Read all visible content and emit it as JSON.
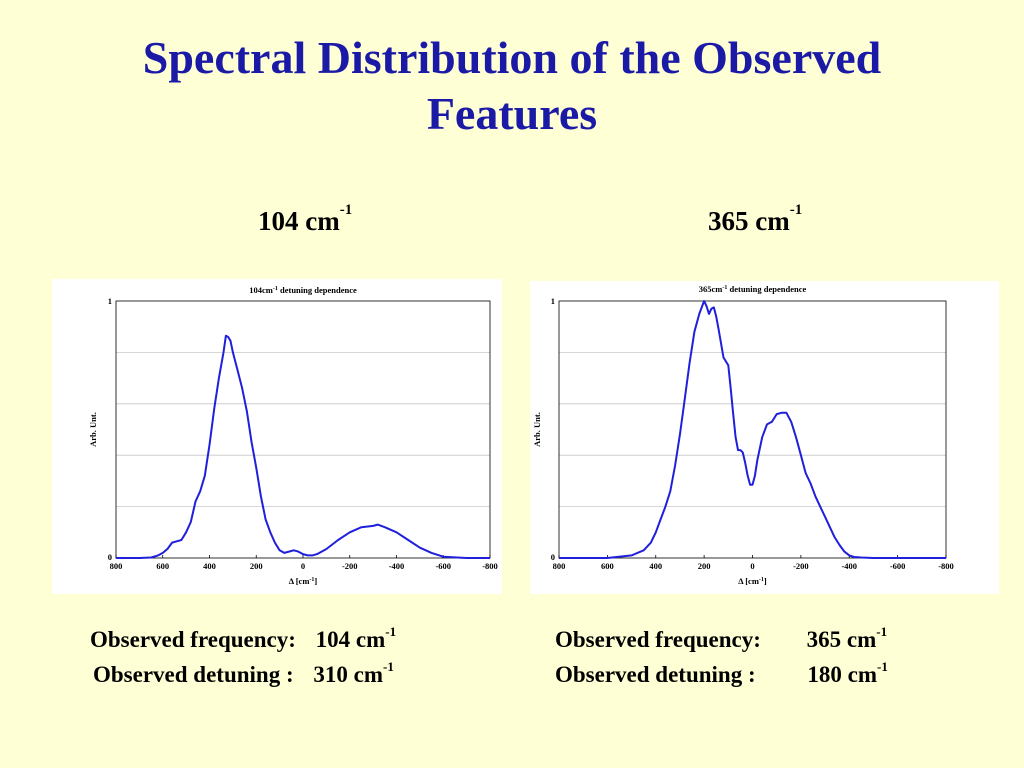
{
  "slide": {
    "title_line1": "Spectral Distribution of the Observed",
    "title_line2": "Features",
    "title_color": "#1a1aa6",
    "background": "#ffffd5"
  },
  "left": {
    "heading_value": "104 cm",
    "heading_sup": "-1",
    "freq_label": "Observed frequency:",
    "freq_value": "104 cm",
    "freq_sup": "-1",
    "det_label": "Observed detuning :",
    "det_value": "310 cm",
    "det_sup": "-1"
  },
  "right": {
    "heading_value": "365 cm",
    "heading_sup": "-1",
    "freq_label": "Observed frequency:",
    "freq_value": "365 cm",
    "freq_sup": "-1",
    "det_label": "Observed detuning :",
    "det_value": "180 cm",
    "det_sup": "-1"
  },
  "chart_data": [
    {
      "type": "line",
      "title": "104cm",
      "title_sup": "-1",
      "title_rest": " detuning dependence",
      "xlabel": "Δ [cm",
      "xlabel_sup": "-1",
      "xlabel_end": "]",
      "ylabel": "Arb. Unt.",
      "xlim": [
        800,
        -800
      ],
      "ylim": [
        0,
        1
      ],
      "xticks": [
        800,
        600,
        400,
        200,
        0,
        -200,
        -400,
        -600,
        -800
      ],
      "xtick_labels": [
        "800",
        "600",
        "400",
        "200",
        "0",
        "-200",
        "-400",
        "-600",
        "-800"
      ],
      "ytick_labels": [
        "0",
        "1"
      ],
      "ygrid_ticks": [
        0,
        0.2,
        0.4,
        0.6,
        0.8,
        1
      ],
      "line_color": "#1f1fdc",
      "series": [
        {
          "x": [
            800,
            700,
            650,
            620,
            600,
            580,
            560,
            540,
            520,
            500,
            480,
            460,
            440,
            420,
            400,
            380,
            360,
            340,
            330,
            320,
            310,
            300,
            280,
            260,
            240,
            220,
            200,
            180,
            160,
            140,
            120,
            100,
            80,
            60,
            40,
            20,
            0,
            -20,
            -40,
            -60,
            -80,
            -100,
            -150,
            -200,
            -250,
            -300,
            -320,
            -350,
            -400,
            -450,
            -500,
            -550,
            -600,
            -700,
            -800
          ],
          "y": [
            0,
            0,
            0.002,
            0.01,
            0.02,
            0.035,
            0.06,
            0.065,
            0.07,
            0.1,
            0.14,
            0.22,
            0.26,
            0.32,
            0.44,
            0.58,
            0.7,
            0.8,
            0.865,
            0.86,
            0.845,
            0.8,
            0.73,
            0.66,
            0.57,
            0.45,
            0.35,
            0.24,
            0.15,
            0.1,
            0.06,
            0.03,
            0.02,
            0.025,
            0.03,
            0.025,
            0.015,
            0.01,
            0.01,
            0.015,
            0.025,
            0.035,
            0.07,
            0.1,
            0.12,
            0.125,
            0.13,
            0.12,
            0.1,
            0.07,
            0.04,
            0.02,
            0.005,
            0,
            0
          ]
        }
      ]
    },
    {
      "type": "line",
      "title": "365cm",
      "title_sup": "-1",
      "title_rest": " detuning dependence",
      "xlabel": "Δ [cm",
      "xlabel_sup": "-1",
      "xlabel_end": "]",
      "ylabel": "Arb. Unt.",
      "xlim": [
        800,
        -800
      ],
      "ylim": [
        0,
        1
      ],
      "xticks": [
        800,
        600,
        400,
        200,
        0,
        -200,
        -400,
        -600,
        -800
      ],
      "xtick_labels": [
        "800",
        "600",
        "400",
        "200",
        "0",
        "-200",
        "-400",
        "-600",
        "-800"
      ],
      "ytick_labels": [
        "0",
        "1"
      ],
      "ygrid_ticks": [
        0,
        0.2,
        0.4,
        0.6,
        0.8,
        1
      ],
      "line_color": "#1f1fdc",
      "series": [
        {
          "x": [
            800,
            600,
            500,
            450,
            420,
            400,
            380,
            360,
            340,
            320,
            300,
            280,
            260,
            240,
            220,
            210,
            200,
            190,
            180,
            170,
            160,
            150,
            140,
            120,
            100,
            90,
            80,
            70,
            60,
            50,
            40,
            30,
            20,
            10,
            0,
            -10,
            -20,
            -40,
            -60,
            -80,
            -100,
            -120,
            -140,
            -160,
            -180,
            -200,
            -220,
            -240,
            -260,
            -280,
            -300,
            -320,
            -340,
            -360,
            -380,
            -400,
            -420,
            -450,
            -500,
            -600,
            -800
          ],
          "y": [
            0,
            0,
            0.01,
            0.03,
            0.06,
            0.1,
            0.15,
            0.2,
            0.26,
            0.36,
            0.48,
            0.62,
            0.76,
            0.88,
            0.95,
            0.975,
            1.0,
            0.98,
            0.95,
            0.97,
            0.975,
            0.94,
            0.89,
            0.78,
            0.75,
            0.66,
            0.56,
            0.47,
            0.42,
            0.42,
            0.41,
            0.37,
            0.32,
            0.285,
            0.285,
            0.32,
            0.38,
            0.47,
            0.52,
            0.53,
            0.56,
            0.565,
            0.565,
            0.53,
            0.47,
            0.4,
            0.33,
            0.29,
            0.24,
            0.2,
            0.16,
            0.12,
            0.08,
            0.05,
            0.025,
            0.01,
            0.004,
            0.002,
            0,
            0,
            0
          ]
        }
      ]
    }
  ]
}
